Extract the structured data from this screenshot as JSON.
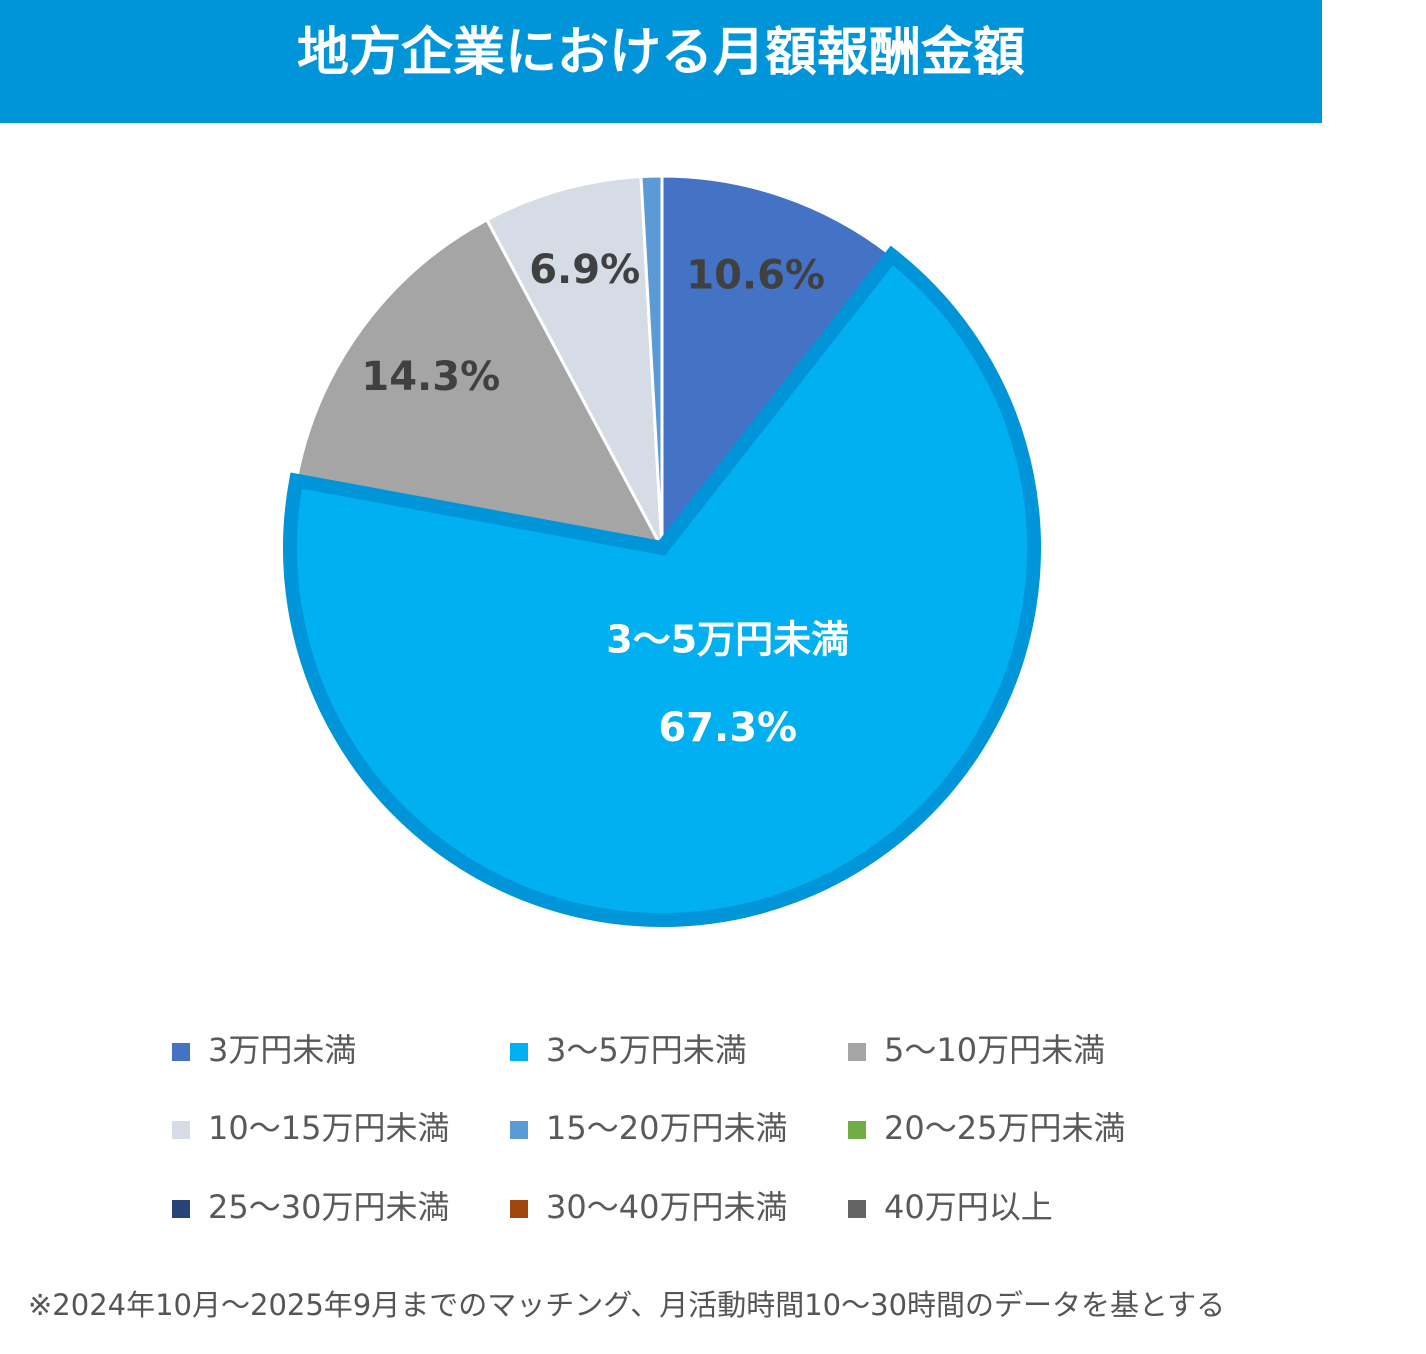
{
  "chart_data": {
    "type": "pie",
    "title": "地方企業における月額報酬金額",
    "categories": [
      "3万円未満",
      "3～5万円未満",
      "5～10万円未満",
      "10～15万円未満",
      "15～20万円未満",
      "20～25万円未満",
      "25～30万円未満",
      "30～40万円未満",
      "40万円以上"
    ],
    "values": [
      10.6,
      67.3,
      14.3,
      6.9,
      0.9,
      0,
      0,
      0,
      0
    ],
    "value_labels": [
      "10.6%",
      "67.3%",
      "14.3%",
      "6.9%",
      null,
      null,
      null,
      null,
      null
    ],
    "colors": [
      "#4472c4",
      "#00b0f0",
      "#a5a5a5",
      "#d6dce5",
      "#5b9bd5",
      "#70ad47",
      "#264478",
      "#9e480e",
      "#636363"
    ],
    "highlight": 1,
    "note": "※2024年10月～2025年9月までのマッチング、月活動時間10～30時間のデータを基とする"
  }
}
